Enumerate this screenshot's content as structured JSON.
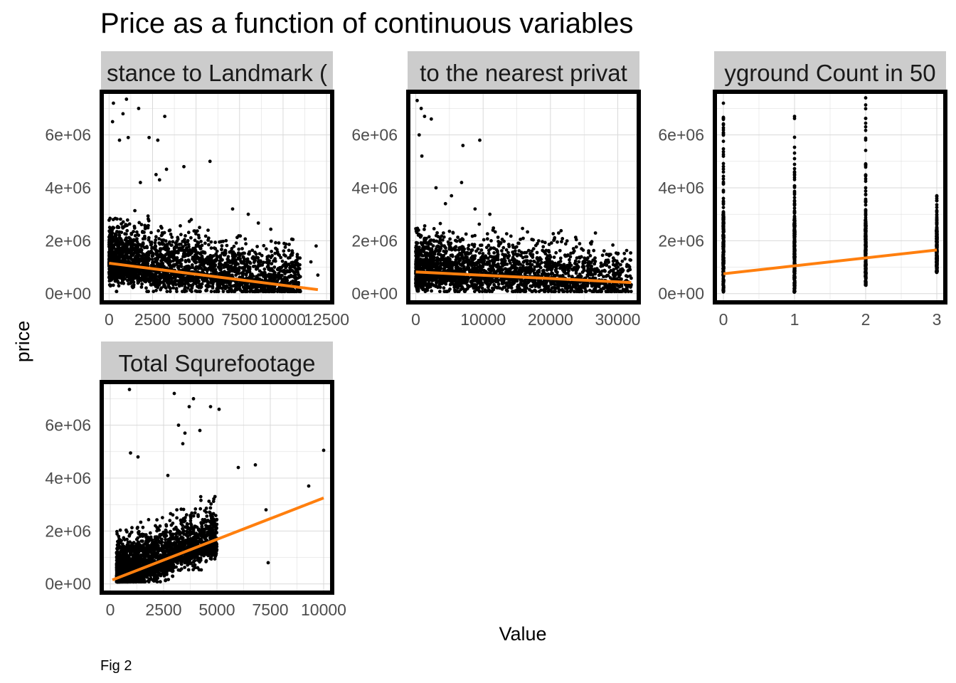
{
  "figure": {
    "title": "Price as a function of continuous variables",
    "xlabel": "Value",
    "ylabel": "price",
    "caption": "Fig 2",
    "colors": {
      "points": "#000000",
      "fit_line": "#ff7f0e",
      "strip_bg": "#cccccc",
      "grid": "#d9d9d9",
      "panel_border": "#000000"
    }
  },
  "chart_data": [
    {
      "type": "scatter",
      "panel_title": "stance to Landmark (",
      "xlim": [
        -300,
        12700
      ],
      "ylim": [
        -250000,
        7550000
      ],
      "x_ticks": [
        0,
        2500,
        5000,
        7500,
        10000,
        12500
      ],
      "x_tick_labels": [
        "0",
        "2500",
        "5000",
        "7500",
        "10000",
        "12500"
      ],
      "y_ticks": [
        0,
        2000000,
        4000000,
        6000000
      ],
      "y_tick_labels": [
        "0e+00",
        "2e+06",
        "4e+06",
        "6e+06"
      ],
      "fit_line": {
        "x": [
          0,
          12000
        ],
        "y": [
          1150000,
          150000
        ]
      },
      "point_cloud": {
        "x_range": [
          0,
          11000
        ],
        "y_base": 1150000,
        "y_slope_per_unit": -70,
        "y_spread": 700000,
        "count": 2600
      },
      "outliers": [
        {
          "x": 250,
          "y": 7200000
        },
        {
          "x": 1000,
          "y": 7350000
        },
        {
          "x": 1700,
          "y": 7000000
        },
        {
          "x": 3200,
          "y": 6700000
        },
        {
          "x": 800,
          "y": 6800000
        },
        {
          "x": 200,
          "y": 6500000
        },
        {
          "x": 1100,
          "y": 5900000
        },
        {
          "x": 2300,
          "y": 5900000
        },
        {
          "x": 2800,
          "y": 5800000
        },
        {
          "x": 600,
          "y": 5800000
        },
        {
          "x": 3300,
          "y": 4700000
        },
        {
          "x": 4300,
          "y": 4800000
        },
        {
          "x": 5800,
          "y": 5000000
        },
        {
          "x": 2700,
          "y": 4500000
        },
        {
          "x": 2900,
          "y": 4300000
        },
        {
          "x": 1800,
          "y": 4200000
        },
        {
          "x": 7100,
          "y": 3200000
        },
        {
          "x": 8000,
          "y": 3000000
        },
        {
          "x": 11900,
          "y": 1800000
        },
        {
          "x": 11600,
          "y": 1200000
        },
        {
          "x": 12000,
          "y": 700000
        },
        {
          "x": 5200,
          "y": 2500000
        }
      ]
    },
    {
      "type": "scatter",
      "panel_title": "to the nearest privat",
      "xlim": [
        -800,
        32800
      ],
      "ylim": [
        -250000,
        7550000
      ],
      "x_ticks": [
        0,
        10000,
        20000,
        30000
      ],
      "x_tick_labels": [
        "0",
        "10000",
        "20000",
        "30000"
      ],
      "y_ticks": [
        0,
        2000000,
        4000000,
        6000000
      ],
      "y_tick_labels": [
        "0e+00",
        "2e+06",
        "4e+06",
        "6e+06"
      ],
      "fit_line": {
        "x": [
          0,
          32000
        ],
        "y": [
          820000,
          420000
        ]
      },
      "point_cloud": {
        "x_range": [
          0,
          32000
        ],
        "y_base": 850000,
        "y_slope_per_unit": -12,
        "y_spread": 650000,
        "count": 2400
      },
      "outliers": [
        {
          "x": 200,
          "y": 7300000
        },
        {
          "x": 800,
          "y": 7000000
        },
        {
          "x": 1300,
          "y": 6700000
        },
        {
          "x": 2300,
          "y": 6600000
        },
        {
          "x": 500,
          "y": 6000000
        },
        {
          "x": 7000,
          "y": 5600000
        },
        {
          "x": 9500,
          "y": 5800000
        },
        {
          "x": 900,
          "y": 5200000
        },
        {
          "x": 3000,
          "y": 4000000
        },
        {
          "x": 4400,
          "y": 3400000
        },
        {
          "x": 6800,
          "y": 4200000
        },
        {
          "x": 5300,
          "y": 3700000
        },
        {
          "x": 8800,
          "y": 3200000
        },
        {
          "x": 11000,
          "y": 3000000
        },
        {
          "x": 30000,
          "y": 1500000
        },
        {
          "x": 28000,
          "y": 1100000
        },
        {
          "x": 22000,
          "y": 1000000
        },
        {
          "x": 26000,
          "y": 800000
        }
      ]
    },
    {
      "type": "scatter",
      "panel_title": "yground Count in 50",
      "xlim": [
        -0.09,
        3.09
      ],
      "ylim": [
        -250000,
        7550000
      ],
      "x_ticks": [
        0,
        1,
        2,
        3
      ],
      "x_tick_labels": [
        "0",
        "1",
        "2",
        "3"
      ],
      "y_ticks": [
        0,
        2000000,
        4000000,
        6000000
      ],
      "y_tick_labels": [
        "0e+00",
        "2e+06",
        "4e+06",
        "6e+06"
      ],
      "fit_line": {
        "x": [
          0,
          3
        ],
        "y": [
          750000,
          1650000
        ]
      },
      "strips": [
        {
          "x": 0,
          "y_min": 50000,
          "y_max": 7200000,
          "dense_max": 3000000
        },
        {
          "x": 1,
          "y_min": 50000,
          "y_max": 6700000,
          "dense_max": 2800000
        },
        {
          "x": 2,
          "y_min": 300000,
          "y_max": 7400000,
          "dense_max": 2800000
        },
        {
          "x": 3,
          "y_min": 800000,
          "y_max": 3700000,
          "dense_max": 2400000
        }
      ]
    },
    {
      "type": "scatter",
      "panel_title": "Total Squrefootage",
      "xlim": [
        -300,
        10300
      ],
      "ylim": [
        -250000,
        7550000
      ],
      "x_ticks": [
        0,
        2500,
        5000,
        7500,
        10000
      ],
      "x_tick_labels": [
        "0",
        "2500",
        "5000",
        "7500",
        "10000"
      ],
      "y_ticks": [
        0,
        2000000,
        4000000,
        6000000
      ],
      "y_tick_labels": [
        "0e+00",
        "2e+06",
        "4e+06",
        "6e+06"
      ],
      "fit_line": {
        "x": [
          100,
          10000
        ],
        "y": [
          150000,
          3250000
        ]
      },
      "point_cloud": {
        "x_range": [
          300,
          5000
        ],
        "y_base": 150000,
        "y_slope_per_unit": 310,
        "y_spread": 650000,
        "count": 2400
      },
      "outliers": [
        {
          "x": 900,
          "y": 7350000
        },
        {
          "x": 3000,
          "y": 7200000
        },
        {
          "x": 3900,
          "y": 7000000
        },
        {
          "x": 3700,
          "y": 6700000
        },
        {
          "x": 4700,
          "y": 6700000
        },
        {
          "x": 5100,
          "y": 6600000
        },
        {
          "x": 3200,
          "y": 6000000
        },
        {
          "x": 3500,
          "y": 5700000
        },
        {
          "x": 4200,
          "y": 5800000
        },
        {
          "x": 950,
          "y": 4950000
        },
        {
          "x": 1300,
          "y": 4800000
        },
        {
          "x": 10000,
          "y": 5050000
        },
        {
          "x": 9300,
          "y": 3700000
        },
        {
          "x": 6800,
          "y": 4500000
        },
        {
          "x": 6000,
          "y": 4400000
        },
        {
          "x": 7300,
          "y": 2800000
        },
        {
          "x": 7400,
          "y": 800000
        },
        {
          "x": 3400,
          "y": 5300000
        },
        {
          "x": 2700,
          "y": 4100000
        }
      ]
    }
  ]
}
